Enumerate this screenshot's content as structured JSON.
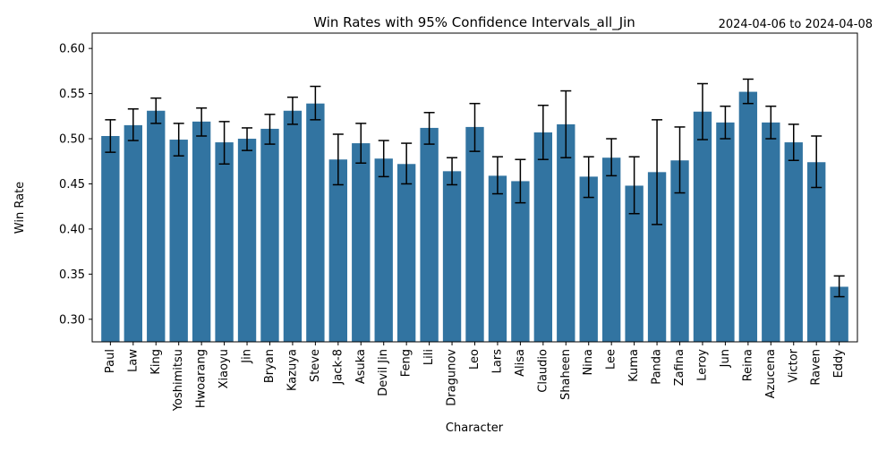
{
  "chart_data": {
    "type": "bar",
    "title": "Win Rates with 95% Confidence Intervals_all_Jin",
    "date_range": "2024-04-06 to 2024-04-08",
    "xlabel": "Character",
    "ylabel": "Win Rate",
    "ylim": [
      0.275,
      0.617
    ],
    "yticks": [
      0.3,
      0.35,
      0.4,
      0.45,
      0.5,
      0.55,
      0.6
    ],
    "ytick_labels": [
      "0.30",
      "0.35",
      "0.40",
      "0.45",
      "0.50",
      "0.55",
      "0.60"
    ],
    "grid": false,
    "bar_color": "#3274a1",
    "error_color": "#000000",
    "categories": [
      "Paul",
      "Law",
      "King",
      "Yoshimitsu",
      "Hwoarang",
      "Xiaoyu",
      "Jin",
      "Bryan",
      "Kazuya",
      "Steve",
      "Jack-8",
      "Asuka",
      "Devil Jin",
      "Feng",
      "Lili",
      "Dragunov",
      "Leo",
      "Lars",
      "Alisa",
      "Claudio",
      "Shaheen",
      "Nina",
      "Lee",
      "Kuma",
      "Panda",
      "Zafina",
      "Leroy",
      "Jun",
      "Reina",
      "Azucena",
      "Victor",
      "Raven",
      "Eddy"
    ],
    "values": [
      0.503,
      0.515,
      0.531,
      0.499,
      0.519,
      0.496,
      0.5,
      0.511,
      0.531,
      0.539,
      0.477,
      0.495,
      0.478,
      0.472,
      0.512,
      0.464,
      0.513,
      0.459,
      0.453,
      0.507,
      0.516,
      0.458,
      0.479,
      0.448,
      0.463,
      0.476,
      0.53,
      0.518,
      0.552,
      0.518,
      0.496,
      0.474,
      0.336
    ],
    "ci_lower": [
      0.485,
      0.498,
      0.517,
      0.481,
      0.503,
      0.472,
      0.487,
      0.494,
      0.516,
      0.521,
      0.449,
      0.473,
      0.458,
      0.45,
      0.494,
      0.449,
      0.486,
      0.439,
      0.429,
      0.477,
      0.479,
      0.435,
      0.459,
      0.417,
      0.405,
      0.44,
      0.499,
      0.5,
      0.539,
      0.5,
      0.476,
      0.446,
      0.325
    ],
    "ci_upper": [
      0.521,
      0.533,
      0.545,
      0.517,
      0.534,
      0.519,
      0.512,
      0.527,
      0.546,
      0.558,
      0.505,
      0.517,
      0.498,
      0.495,
      0.529,
      0.479,
      0.539,
      0.48,
      0.477,
      0.537,
      0.553,
      0.48,
      0.5,
      0.48,
      0.521,
      0.513,
      0.561,
      0.536,
      0.566,
      0.536,
      0.516,
      0.503,
      0.348
    ]
  }
}
